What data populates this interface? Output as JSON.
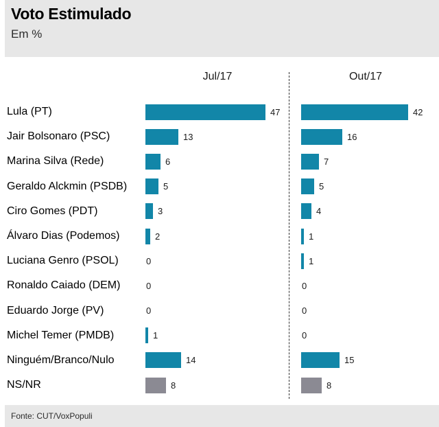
{
  "header": {
    "title": "Voto Estimulado",
    "subtitle": "Em %"
  },
  "footer": {
    "source": "Fonte: CUT/VoxPopuli"
  },
  "colors": {
    "bar": "#1286a8",
    "bar_muted": "#8b8a93",
    "band_background": "#e7e7e7",
    "divider": "#333333"
  },
  "chart_data": {
    "type": "bar",
    "orientation": "horizontal",
    "title": "Voto Estimulado",
    "subtitle": "Em %",
    "unit": "%",
    "xlim": [
      0,
      50
    ],
    "grid": false,
    "legend_position": "column-headers-top",
    "categories": [
      "Lula (PT)",
      "Jair Bolsonaro (PSC)",
      "Marina Silva (Rede)",
      "Geraldo Alckmin (PSDB)",
      "Ciro Gomes (PDT)",
      "Álvaro Dias (Podemos)",
      "Luciana Genro (PSOL)",
      "Ronaldo Caiado (DEM)",
      "Eduardo Jorge (PV)",
      "Michel Temer (PMDB)",
      "Ninguém/Branco/Nulo",
      "NS/NR"
    ],
    "series": [
      {
        "name": "Jul/17",
        "values": [
          47,
          13,
          6,
          5,
          3,
          2,
          0,
          0,
          0,
          1,
          14,
          8
        ]
      },
      {
        "name": "Out/17",
        "values": [
          42,
          16,
          7,
          5,
          4,
          1,
          1,
          0,
          0,
          0,
          15,
          8
        ]
      }
    ],
    "muted_categories": [
      "NS/NR"
    ],
    "source": "Fonte: CUT/VoxPopuli"
  }
}
